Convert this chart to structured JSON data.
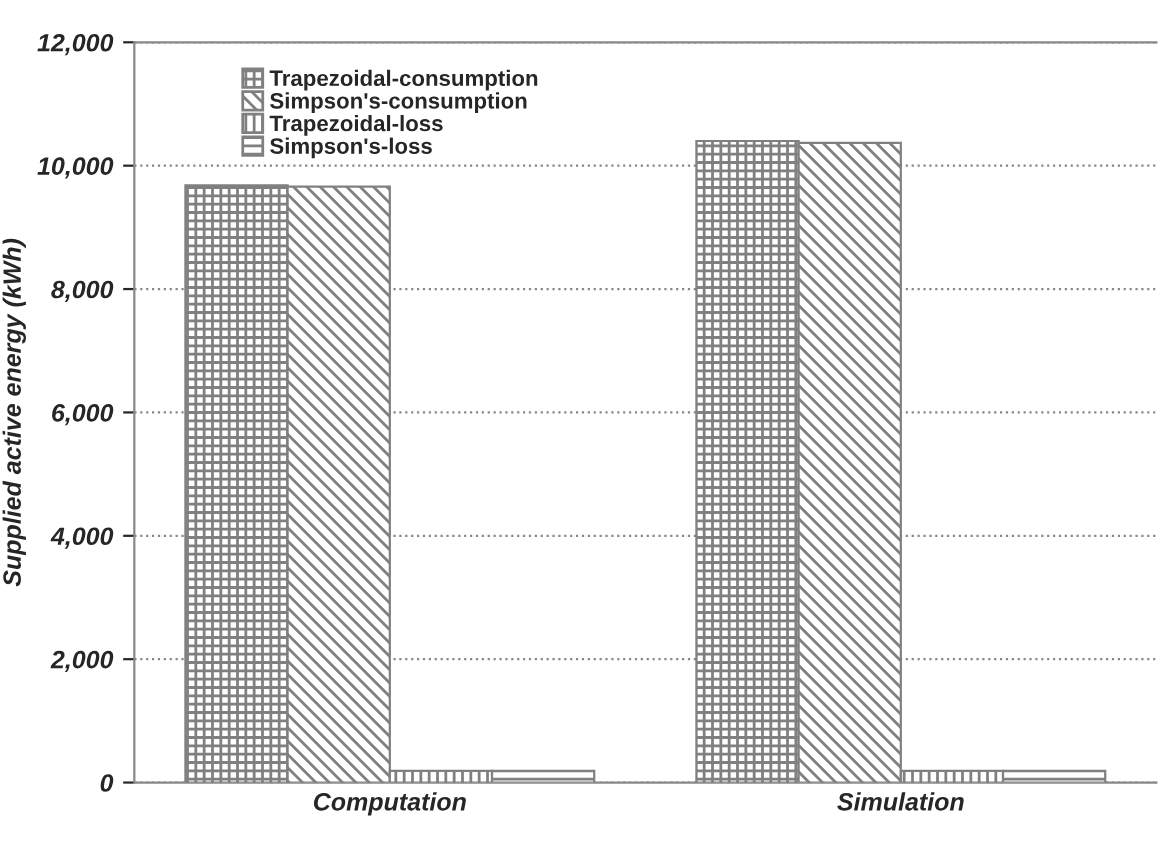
{
  "chart_data": {
    "type": "bar",
    "ylabel": "Supplied active energy (kWh)",
    "categories": [
      "Computation",
      "Simulation"
    ],
    "series": [
      {
        "name": "Trapezoidal-consumption",
        "color": "#808080",
        "values": [
          9680,
          10400
        ]
      },
      {
        "name": "Simpson's-consumption",
        "color": "#808080",
        "values": [
          9660,
          10370
        ]
      },
      {
        "name": "Trapezoidal-loss",
        "color": "#808080",
        "values": [
          190,
          190
        ]
      },
      {
        "name": "Simpson's-loss",
        "color": "#808080",
        "values": [
          190,
          190
        ]
      }
    ],
    "ylim": [
      0,
      12000
    ],
    "yticks": [
      {
        "value": 0,
        "label": "0"
      },
      {
        "value": 2000,
        "label": "2,000"
      },
      {
        "value": 4000,
        "label": "4,000"
      },
      {
        "value": 6000,
        "label": "6,000"
      },
      {
        "value": 8000,
        "label": "8,000"
      },
      {
        "value": 10000,
        "label": "10,000"
      },
      {
        "value": 12000,
        "label": "12,000"
      }
    ],
    "grid": "y",
    "legend": "top left"
  }
}
